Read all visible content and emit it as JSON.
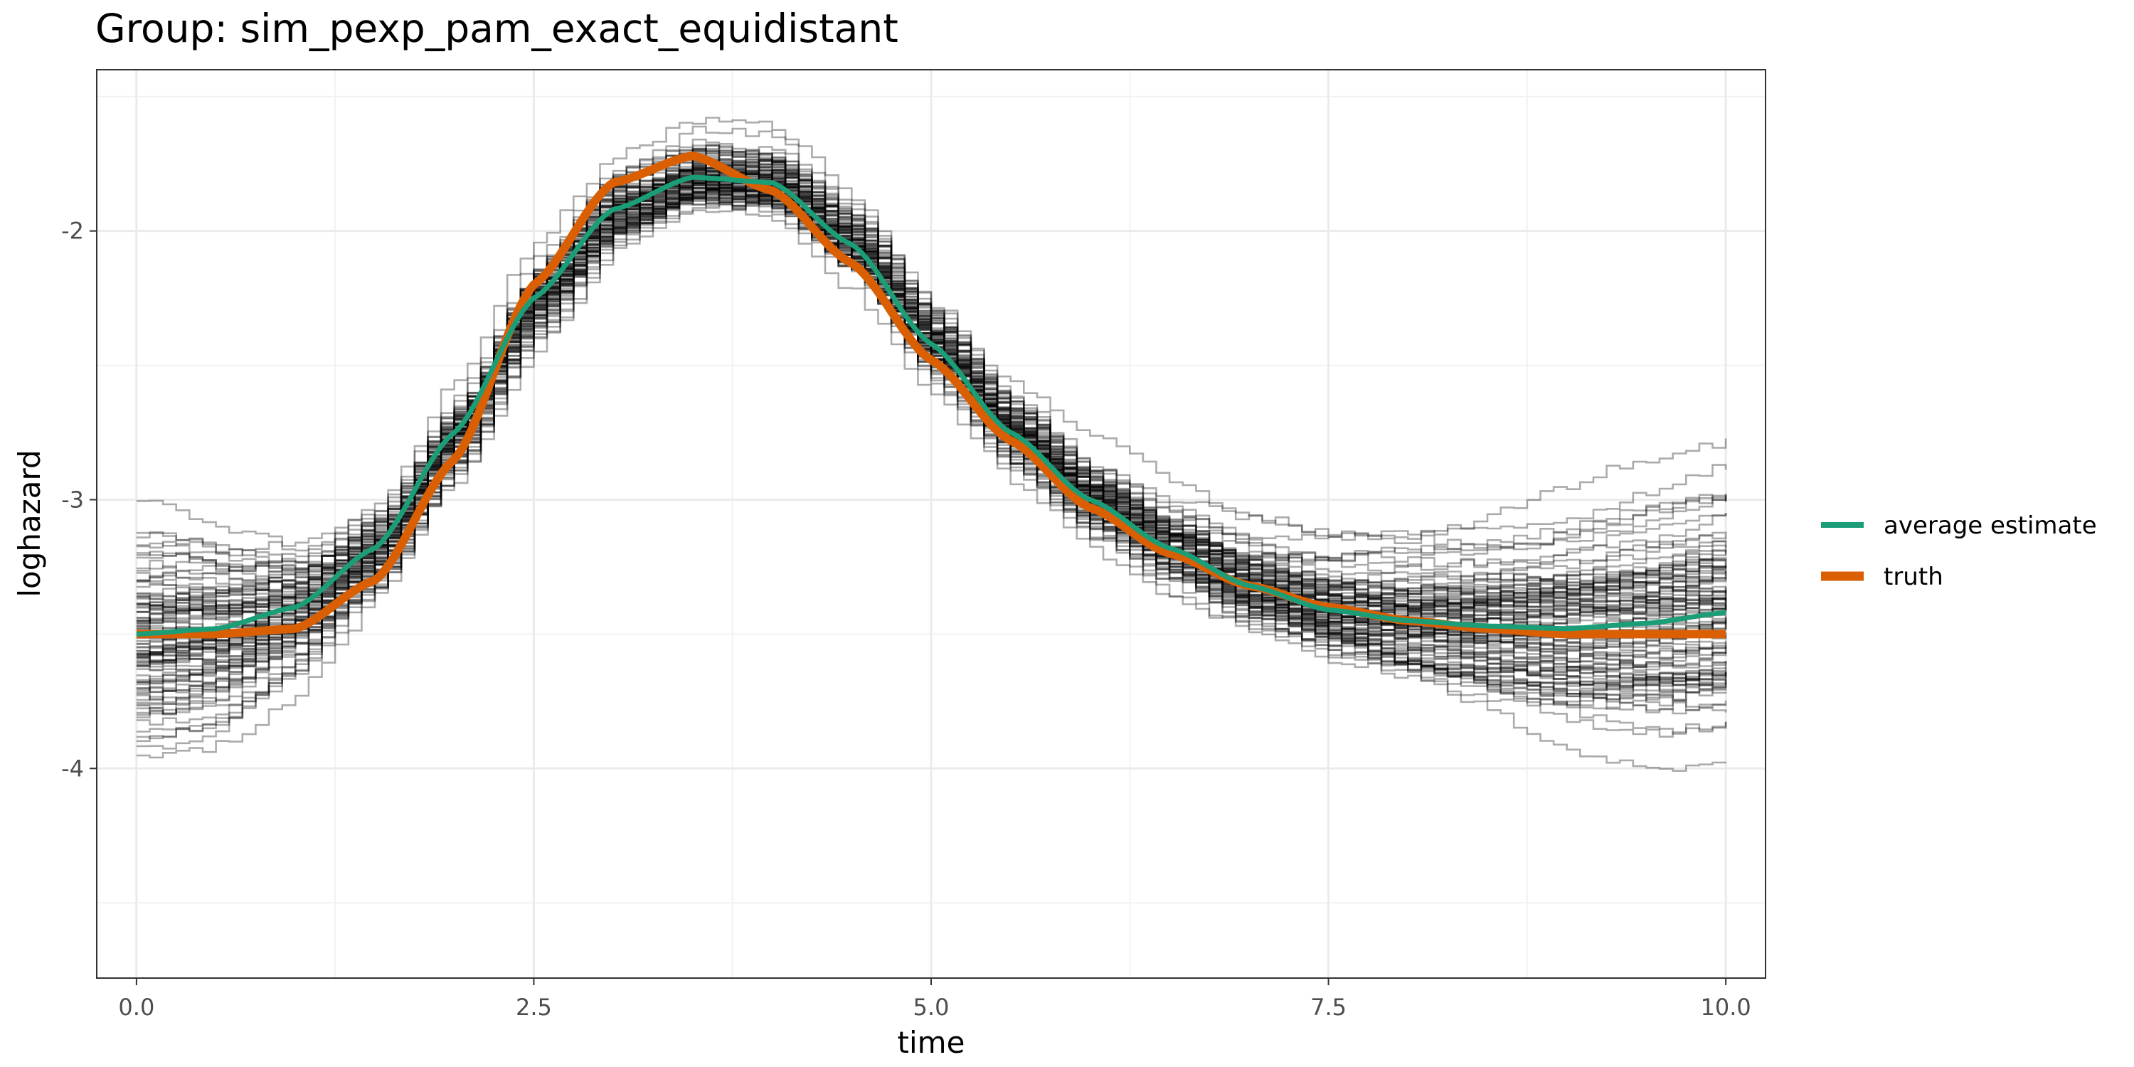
{
  "chart_data": {
    "type": "line",
    "title": "Group: sim_pexp_pam_exact_equidistant",
    "xlabel": "time",
    "ylabel": "loghazard",
    "xlim": [
      -0.25,
      10.25
    ],
    "ylim": [
      -4.78,
      -1.4
    ],
    "x_ticks": [
      0.0,
      2.5,
      5.0,
      7.5,
      10.0
    ],
    "x_tick_labels": [
      "0.0",
      "2.5",
      "5.0",
      "7.5",
      "10.0"
    ],
    "y_ticks": [
      -2,
      -3,
      -4
    ],
    "y_tick_labels": [
      "-2",
      "-3",
      "-4"
    ],
    "grid": true,
    "legend_position": "right",
    "series": [
      {
        "name": "average estimate",
        "color": "#1B9E77",
        "x": [
          0,
          0.5,
          1.0,
          1.5,
          2.0,
          2.5,
          3.0,
          3.5,
          4.0,
          4.5,
          5.0,
          5.5,
          6.0,
          6.5,
          7.0,
          7.5,
          8.0,
          8.5,
          9.0,
          9.5,
          10.0
        ],
        "y": [
          -3.5,
          -3.48,
          -3.4,
          -3.18,
          -2.75,
          -2.25,
          -1.92,
          -1.8,
          -1.82,
          -2.05,
          -2.42,
          -2.75,
          -3.0,
          -3.18,
          -3.32,
          -3.41,
          -3.45,
          -3.47,
          -3.48,
          -3.46,
          -3.42
        ]
      },
      {
        "name": "truth",
        "color": "#D95F02",
        "x": [
          0,
          0.5,
          1.0,
          1.5,
          2.0,
          2.5,
          3.0,
          3.5,
          4.0,
          4.5,
          5.0,
          5.5,
          6.0,
          6.5,
          7.0,
          7.5,
          8.0,
          8.5,
          9.0,
          9.5,
          10.0
        ],
        "y": [
          -3.5,
          -3.5,
          -3.48,
          -3.3,
          -2.85,
          -2.2,
          -1.82,
          -1.72,
          -1.85,
          -2.12,
          -2.48,
          -2.78,
          -3.03,
          -3.2,
          -3.32,
          -3.4,
          -3.45,
          -3.48,
          -3.5,
          -3.5,
          -3.5
        ]
      }
    ],
    "bootstrap_replicates": {
      "count": 100,
      "color": "#000000",
      "description": "step-function estimates from individual simulation runs, scattered around the average estimate"
    }
  }
}
